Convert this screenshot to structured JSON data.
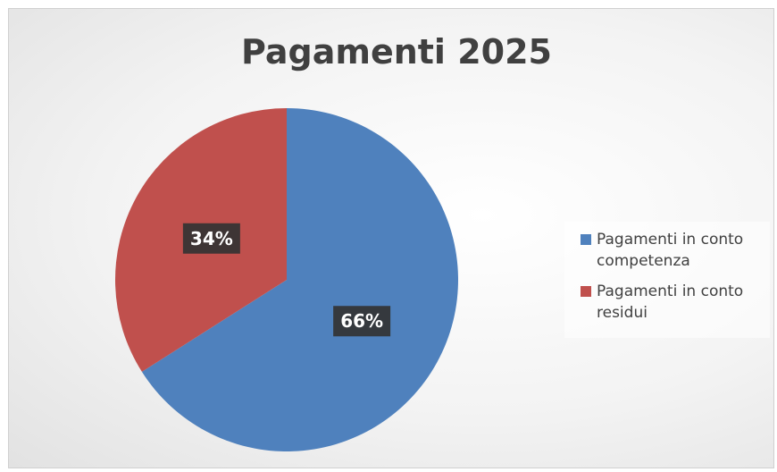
{
  "chart_data": {
    "type": "pie",
    "title": "Pagamenti 2025",
    "categories": [
      "Pagamenti in conto competenza",
      "Pagamenti in conto residui"
    ],
    "values": [
      66,
      34
    ],
    "value_labels": [
      "66%",
      "34%"
    ],
    "colors": [
      "#4f81bd",
      "#c0504d"
    ],
    "legend": "right"
  }
}
